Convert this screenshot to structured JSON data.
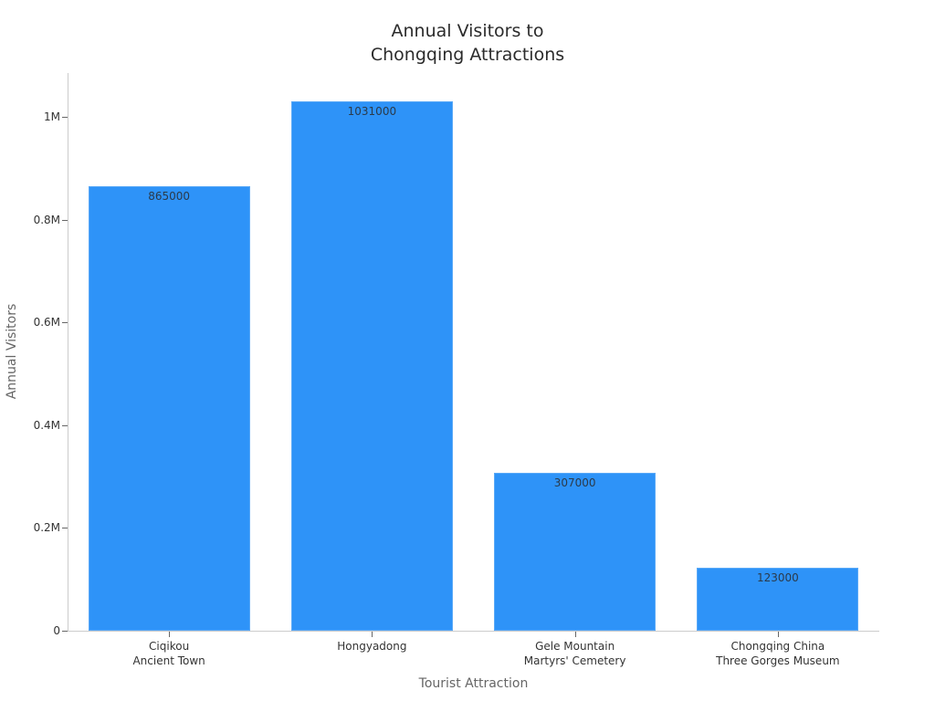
{
  "chart_data": {
    "type": "bar",
    "title": "Annual Visitors to\nChongqing Attractions",
    "title_lines": [
      "Annual Visitors to",
      "Chongqing Attractions"
    ],
    "xlabel": "Tourist Attraction",
    "ylabel": "Annual Visitors",
    "categories": [
      "Ciqikou Ancient Town",
      "Hongyadong",
      "Gele Mountain Martyrs' Cemetery",
      "Chongqing China Three Gorges Museum"
    ],
    "category_label_lines": [
      [
        "Ciqikou",
        "Ancient Town"
      ],
      [
        "Hongyadong"
      ],
      [
        "Gele Mountain",
        "Martyrs' Cemetery"
      ],
      [
        "Chongqing China",
        "Three Gorges Museum"
      ]
    ],
    "values": [
      865000,
      1031000,
      307000,
      123000
    ],
    "data_labels": [
      "865000",
      "1031000",
      "307000",
      "123000"
    ],
    "ylim": [
      0,
      1085000
    ],
    "yticks": [
      0,
      200000,
      400000,
      600000,
      800000,
      1000000
    ],
    "ytick_labels": [
      "0",
      "0.2M",
      "0.4M",
      "0.6M",
      "0.8M",
      "1M"
    ],
    "grid": false,
    "legend": null,
    "bar_color": "#2e93f8"
  }
}
